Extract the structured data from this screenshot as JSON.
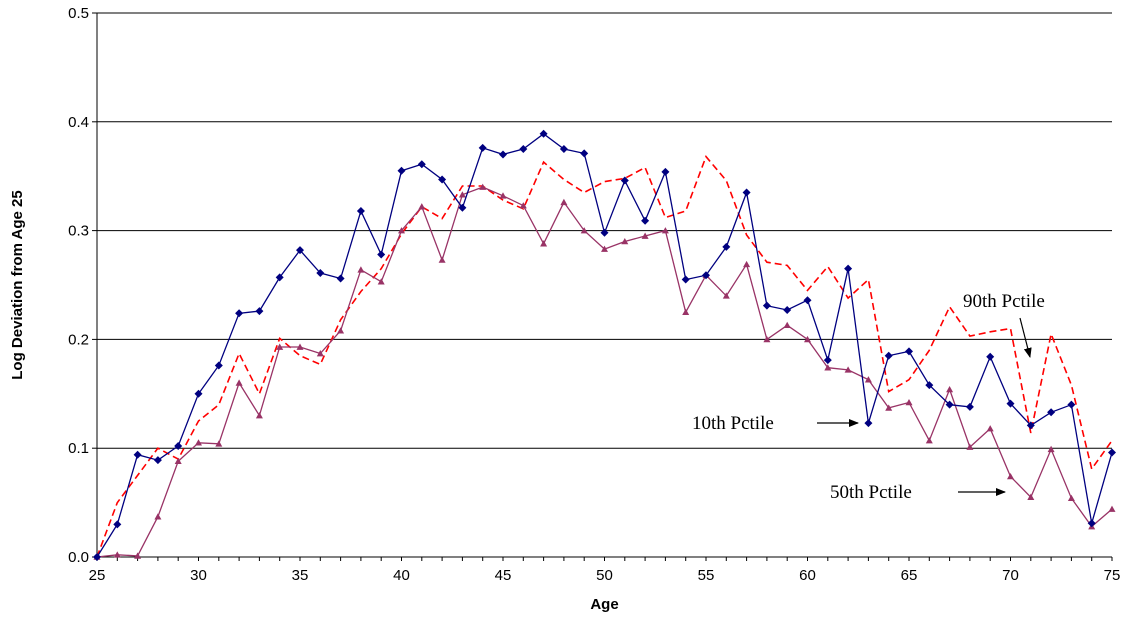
{
  "chart_data": {
    "type": "line",
    "title": "",
    "xlabel": "Age",
    "ylabel": "Log Deviation from Age 25",
    "xlim": [
      25,
      75
    ],
    "ylim": [
      0.0,
      0.5
    ],
    "x_ticks": [
      25,
      30,
      35,
      40,
      45,
      50,
      55,
      60,
      65,
      70,
      75
    ],
    "y_ticks": [
      "0.0",
      "0.1",
      "0.2",
      "0.3",
      "0.4",
      "0.5"
    ],
    "grid": "horizontal",
    "x": [
      25,
      26,
      27,
      28,
      29,
      30,
      31,
      32,
      33,
      34,
      35,
      36,
      37,
      38,
      39,
      40,
      41,
      42,
      43,
      44,
      45,
      46,
      47,
      48,
      49,
      50,
      51,
      52,
      53,
      54,
      55,
      56,
      57,
      58,
      59,
      60,
      61,
      62,
      63,
      64,
      65,
      66,
      67,
      68,
      69,
      70,
      71,
      72,
      73,
      74,
      75
    ],
    "series": [
      {
        "key": "p10",
        "color": "#000080",
        "marker": "diamond",
        "dash": "solid",
        "values": [
          0.0,
          0.03,
          0.094,
          0.089,
          0.102,
          0.15,
          0.176,
          0.224,
          0.226,
          0.257,
          0.282,
          0.261,
          0.256,
          0.318,
          0.278,
          0.355,
          0.361,
          0.347,
          0.321,
          0.376,
          0.37,
          0.375,
          0.389,
          0.375,
          0.371,
          0.298,
          0.346,
          0.309,
          0.354,
          0.255,
          0.259,
          0.285,
          0.335,
          0.231,
          0.227,
          0.236,
          0.181,
          0.265,
          0.123,
          0.185,
          0.189,
          0.158,
          0.14,
          0.138,
          0.184,
          0.141,
          0.121,
          0.133,
          0.14,
          0.031,
          0.096
        ]
      },
      {
        "key": "p50",
        "color": "#993366",
        "marker": "triangle",
        "dash": "solid",
        "values": [
          0.0,
          0.002,
          0.001,
          0.037,
          0.088,
          0.105,
          0.104,
          0.16,
          0.13,
          0.193,
          0.193,
          0.187,
          0.208,
          0.264,
          0.253,
          0.3,
          0.322,
          0.273,
          0.333,
          0.34,
          0.332,
          0.323,
          0.288,
          0.326,
          0.3,
          0.283,
          0.29,
          0.295,
          0.3,
          0.225,
          0.259,
          0.24,
          0.269,
          0.2,
          0.213,
          0.2,
          0.174,
          0.172,
          0.163,
          0.137,
          0.142,
          0.107,
          0.154,
          0.101,
          0.118,
          0.074,
          0.055,
          0.099,
          0.054,
          0.028,
          0.044
        ]
      },
      {
        "key": "p90",
        "color": "#ff0000",
        "marker": "none",
        "dash": "dashed",
        "values": [
          0.0,
          0.05,
          0.075,
          0.1,
          0.09,
          0.125,
          0.14,
          0.187,
          0.15,
          0.201,
          0.185,
          0.177,
          0.218,
          0.244,
          0.265,
          0.297,
          0.322,
          0.311,
          0.341,
          0.341,
          0.328,
          0.32,
          0.363,
          0.347,
          0.335,
          0.345,
          0.348,
          0.358,
          0.312,
          0.318,
          0.368,
          0.346,
          0.296,
          0.271,
          0.268,
          0.245,
          0.267,
          0.238,
          0.255,
          0.152,
          0.163,
          0.19,
          0.23,
          0.203,
          0.207,
          0.21,
          0.114,
          0.205,
          0.158,
          0.081,
          0.107
        ]
      }
    ],
    "annotations": [
      {
        "text": "90th Pctile",
        "series": "p90",
        "x_value": 71
      },
      {
        "text": "10th Pctile",
        "series": "p10",
        "x_value": 63
      },
      {
        "text": "50th Pctile",
        "series": "p50",
        "x_value": 71
      }
    ]
  }
}
